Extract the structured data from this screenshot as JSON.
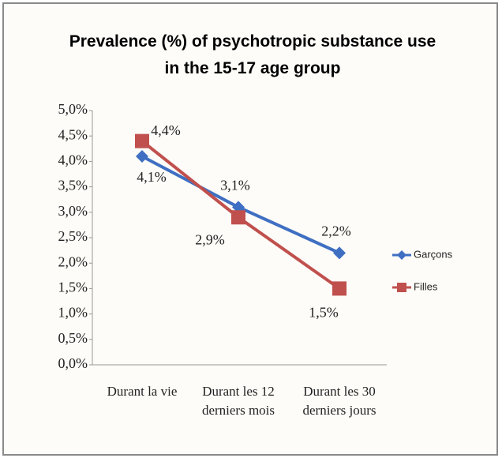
{
  "chart_data": {
    "type": "line",
    "title": "Prevalence (%) of psychotropic substance use in the 15-17 age group",
    "categories": [
      "Durant la vie",
      "Durant les 12 derniers mois",
      "Durant les 30 derniers jours"
    ],
    "series": [
      {
        "name": "Garçons",
        "color": "#3f6fc2",
        "marker": "diamond",
        "values": [
          4.1,
          3.1,
          2.2
        ],
        "value_labels": [
          "4,1%",
          "3,1%",
          "2,2%"
        ]
      },
      {
        "name": "Filles",
        "color": "#c0504d",
        "marker": "square",
        "values": [
          4.4,
          2.9,
          1.5
        ],
        "value_labels": [
          "4,4%",
          "2,9%",
          "1,5%"
        ]
      }
    ],
    "ylim": [
      0,
      5
    ],
    "yticks": [
      {
        "value": 0,
        "label": "0,0%"
      },
      {
        "value": 0.5,
        "label": "0,5%"
      },
      {
        "value": 1,
        "label": "1,0%"
      },
      {
        "value": 1.5,
        "label": "1,5%"
      },
      {
        "value": 2,
        "label": "2,0%"
      },
      {
        "value": 2.5,
        "label": "2,5%"
      },
      {
        "value": 3,
        "label": "3,0%"
      },
      {
        "value": 3.5,
        "label": "3,5%"
      },
      {
        "value": 4,
        "label": "4,0%"
      },
      {
        "value": 4.5,
        "label": "4,5%"
      },
      {
        "value": 5,
        "label": "5,0%"
      }
    ],
    "grid": false,
    "legend": "right"
  }
}
